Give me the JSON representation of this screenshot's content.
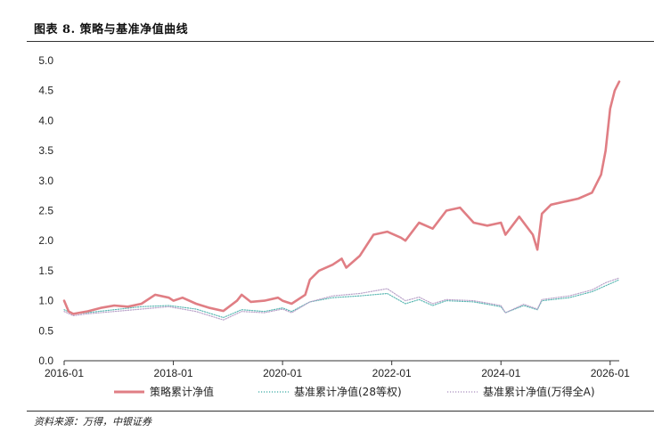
{
  "figure": {
    "title": "图表 8. 策略与基准净值曲线",
    "source": "资料来源：万得，中银证券"
  },
  "colors": {
    "strategy": "#e07e84",
    "bench28": "#5bb8b3",
    "benchA": "#b9a2c9",
    "axis": "#333333"
  },
  "chart_data": {
    "type": "line",
    "title": "",
    "xlabel": "",
    "ylabel": "",
    "xlim": [
      "2016-01",
      "2026-03"
    ],
    "ylim": [
      0.0,
      5.0
    ],
    "yticks": [
      "0.0",
      "0.5",
      "1.0",
      "1.5",
      "2.0",
      "2.5",
      "3.0",
      "3.5",
      "4.0",
      "4.5",
      "5.0"
    ],
    "xticks": [
      "2016-01",
      "2018-01",
      "2020-01",
      "2022-01",
      "2024-01",
      "2026-01"
    ],
    "grid": false,
    "legend_position": "bottom",
    "series": [
      {
        "name": "策略累计净值",
        "color": "#e07e84",
        "style": "solid-thick",
        "x": [
          "2016-01",
          "2016-02",
          "2016-03",
          "2016-06",
          "2016-09",
          "2016-12",
          "2017-03",
          "2017-06",
          "2017-09",
          "2017-12",
          "2018-01",
          "2018-03",
          "2018-06",
          "2018-09",
          "2018-12",
          "2019-03",
          "2019-04",
          "2019-06",
          "2019-09",
          "2019-12",
          "2020-01",
          "2020-03",
          "2020-06",
          "2020-07",
          "2020-09",
          "2020-12",
          "2021-02",
          "2021-03",
          "2021-06",
          "2021-09",
          "2021-12",
          "2022-03",
          "2022-04",
          "2022-07",
          "2022-10",
          "2023-01",
          "2023-04",
          "2023-07",
          "2023-10",
          "2024-01",
          "2024-02",
          "2024-05",
          "2024-08",
          "2024-09",
          "2024-10",
          "2024-12",
          "2025-03",
          "2025-06",
          "2025-09",
          "2025-11",
          "2025-12",
          "2026-01",
          "2026-02",
          "2026-03"
        ],
        "values": [
          1.0,
          0.82,
          0.78,
          0.82,
          0.88,
          0.92,
          0.9,
          0.95,
          1.1,
          1.05,
          1.0,
          1.05,
          0.95,
          0.88,
          0.83,
          1.0,
          1.1,
          0.98,
          1.0,
          1.05,
          1.0,
          0.95,
          1.1,
          1.35,
          1.5,
          1.6,
          1.7,
          1.55,
          1.75,
          2.1,
          2.15,
          2.05,
          2.0,
          2.3,
          2.2,
          2.5,
          2.55,
          2.3,
          2.25,
          2.3,
          2.1,
          2.4,
          2.1,
          1.85,
          2.45,
          2.6,
          2.65,
          2.7,
          2.8,
          3.1,
          3.5,
          4.2,
          4.5,
          4.65
        ]
      },
      {
        "name": "基准累计净值(28等权)",
        "color": "#5bb8b3",
        "style": "dotted",
        "x": [
          "2016-01",
          "2016-03",
          "2016-06",
          "2016-12",
          "2017-06",
          "2017-12",
          "2018-06",
          "2018-12",
          "2019-04",
          "2019-09",
          "2020-01",
          "2020-03",
          "2020-07",
          "2020-12",
          "2021-06",
          "2021-12",
          "2022-04",
          "2022-07",
          "2022-10",
          "2023-01",
          "2023-07",
          "2024-01",
          "2024-02",
          "2024-06",
          "2024-09",
          "2024-10",
          "2025-04",
          "2025-09",
          "2025-12",
          "2026-03"
        ],
        "values": [
          0.85,
          0.78,
          0.8,
          0.85,
          0.9,
          0.92,
          0.86,
          0.72,
          0.85,
          0.82,
          0.88,
          0.82,
          0.98,
          1.05,
          1.08,
          1.12,
          0.95,
          1.02,
          0.92,
          1.0,
          0.98,
          0.9,
          0.8,
          0.92,
          0.85,
          1.0,
          1.05,
          1.15,
          1.25,
          1.35
        ]
      },
      {
        "name": "基准累计净值(万得全A)",
        "color": "#b9a2c9",
        "style": "dotted",
        "x": [
          "2016-01",
          "2016-03",
          "2016-06",
          "2016-12",
          "2017-06",
          "2017-12",
          "2018-06",
          "2018-12",
          "2019-04",
          "2019-09",
          "2020-01",
          "2020-03",
          "2020-07",
          "2020-12",
          "2021-06",
          "2021-12",
          "2022-04",
          "2022-07",
          "2022-10",
          "2023-01",
          "2023-07",
          "2024-01",
          "2024-02",
          "2024-06",
          "2024-09",
          "2024-10",
          "2025-04",
          "2025-09",
          "2025-12",
          "2026-03"
        ],
        "values": [
          0.82,
          0.75,
          0.78,
          0.82,
          0.86,
          0.9,
          0.82,
          0.68,
          0.82,
          0.8,
          0.86,
          0.8,
          0.98,
          1.08,
          1.12,
          1.2,
          1.0,
          1.06,
          0.95,
          1.02,
          1.0,
          0.92,
          0.8,
          0.94,
          0.86,
          1.02,
          1.08,
          1.18,
          1.3,
          1.38
        ]
      }
    ]
  }
}
